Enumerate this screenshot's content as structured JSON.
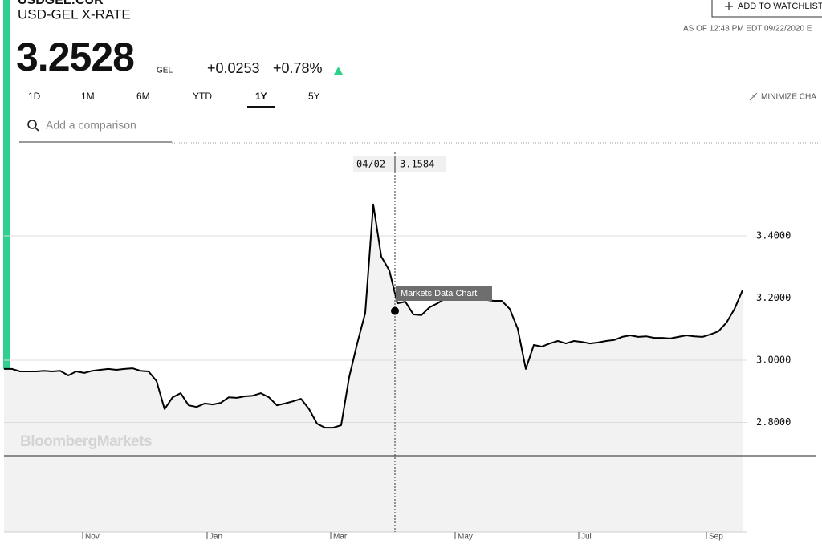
{
  "header": {
    "ticker": "USDGEL:CUR",
    "name": "USD-GEL X-RATE",
    "price": "3.2528",
    "currency": "GEL",
    "change": "+0.0253",
    "change_pct": "+0.78%",
    "watchlist": "ADD TO WATCHLIST",
    "as_of": "AS OF 12:48 PM EDT 09/22/2020 E"
  },
  "tabs": {
    "items": [
      "1D",
      "1M",
      "6M",
      "YTD",
      "1Y",
      "5Y"
    ],
    "selected": 4
  },
  "minimize": "MINIMIZE CHA",
  "search_placeholder": "Add a comparison",
  "chart_data": {
    "type": "line",
    "color": "#000000",
    "fill": "#f2f2f2",
    "grid": true,
    "values": [
      2.972,
      2.972,
      2.964,
      2.964,
      2.964,
      2.966,
      2.964,
      2.966,
      2.951,
      2.964,
      2.959,
      2.966,
      2.969,
      2.972,
      2.969,
      2.972,
      2.974,
      2.966,
      2.964,
      2.933,
      2.843,
      2.881,
      2.894,
      2.855,
      2.85,
      2.861,
      2.858,
      2.863,
      2.881,
      2.879,
      2.884,
      2.886,
      2.894,
      2.881,
      2.855,
      2.861,
      2.868,
      2.876,
      2.843,
      2.796,
      2.783,
      2.783,
      2.791,
      2.946,
      3.054,
      3.152,
      3.501,
      3.333,
      3.289,
      3.183,
      3.188,
      3.147,
      3.145,
      3.17,
      3.183,
      3.199,
      3.199,
      3.199,
      3.199,
      3.199,
      3.194,
      3.191,
      3.191,
      3.165,
      3.101,
      2.972,
      3.049,
      3.044,
      3.054,
      3.062,
      3.054,
      3.062,
      3.059,
      3.054,
      3.057,
      3.062,
      3.065,
      3.075,
      3.08,
      3.075,
      3.077,
      3.072,
      3.072,
      3.07,
      3.075,
      3.08,
      3.077,
      3.075,
      3.083,
      3.093,
      3.121,
      3.165,
      3.225
    ],
    "xlim": [
      0,
      92.5
    ],
    "xticks": [
      {
        "value": 9.8,
        "label": "Nov"
      },
      {
        "value": 25.3,
        "label": "Jan"
      },
      {
        "value": 40.7,
        "label": "Mar"
      },
      {
        "value": 56.2,
        "label": "May"
      },
      {
        "value": 71.6,
        "label": "Jul"
      },
      {
        "value": 87.5,
        "label": "Sep"
      }
    ],
    "ylim": [
      2.448,
      3.694
    ],
    "yticks": [
      {
        "value": 2.8,
        "label": "2.8000"
      },
      {
        "value": 3.0,
        "label": "3.0000"
      },
      {
        "value": 3.2,
        "label": "3.2000"
      },
      {
        "value": 3.4,
        "label": "3.4000"
      }
    ],
    "watermark": "BloombergMarkets",
    "tooltip": {
      "date": "04/02",
      "value": 3.1584,
      "label": "Markets Data Chart"
    }
  }
}
